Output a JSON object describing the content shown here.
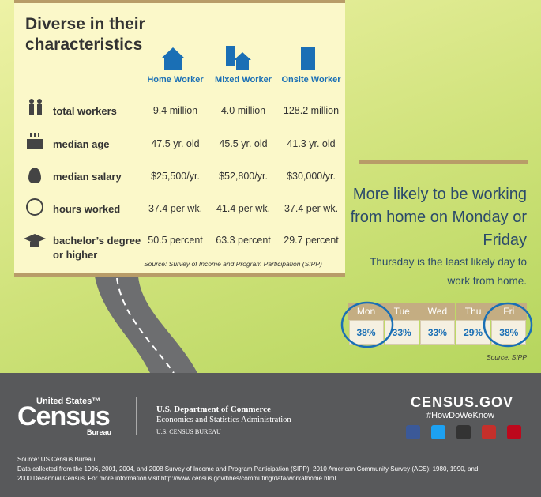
{
  "left_panel": {
    "title": "Diverse in their characteristics",
    "columns": [
      "Home Worker",
      "Mixed Worker",
      "Onsite Worker"
    ],
    "rows": [
      {
        "label": "total workers",
        "values": [
          "9.4 million",
          "4.0 million",
          "128.2 million"
        ]
      },
      {
        "label": "median age",
        "values": [
          "47.5 yr. old",
          "45.5 yr. old",
          "41.3 yr. old"
        ]
      },
      {
        "label": "median salary",
        "values": [
          "$25,500/yr.",
          "$52,800/yr.",
          "$30,000/yr."
        ]
      },
      {
        "label": "hours worked",
        "values": [
          "37.4 per wk.",
          "41.4 per wk.",
          "37.4 per wk."
        ]
      },
      {
        "label": "bachelor’s degree or higher",
        "values": [
          "50.5 percent",
          "63.3 percent",
          "29.7 percent"
        ]
      }
    ],
    "source": "Source: Survey of Income and Program Participation (SIPP)"
  },
  "right_panel": {
    "title": "More likely to be working from home on Monday or Friday",
    "subtitle": "Thursday is the least likely day to work from home.",
    "days": [
      "Mon",
      "Tue",
      "Wed",
      "Thu",
      "Fri"
    ],
    "percents": [
      "38%",
      "33%",
      "33%",
      "29%",
      "38%"
    ],
    "source": "Source: SIPP"
  },
  "footer": {
    "logo_top": "United States™",
    "logo_main": "Census",
    "logo_bottom": "Bureau",
    "dept": "U.S. Department of Commerce",
    "admin": "Economics and Statistics Administration",
    "bureau": "U.S. CENSUS BUREAU",
    "site": "CENSUS.GOV",
    "hashtag": "#HowDoWeKnow",
    "source_title": "Source: US Census Bureau",
    "source_text": "Data collected from the 1996, 2001, 2004, and 2008 Survey of Income and Program Participation (SIPP); 2010 American Community Survey (ACS); 1980, 1990, and 2000 Decennial Census. For more information visit http://www.census.gov/hhes/commuting/data/workathome.html."
  }
}
